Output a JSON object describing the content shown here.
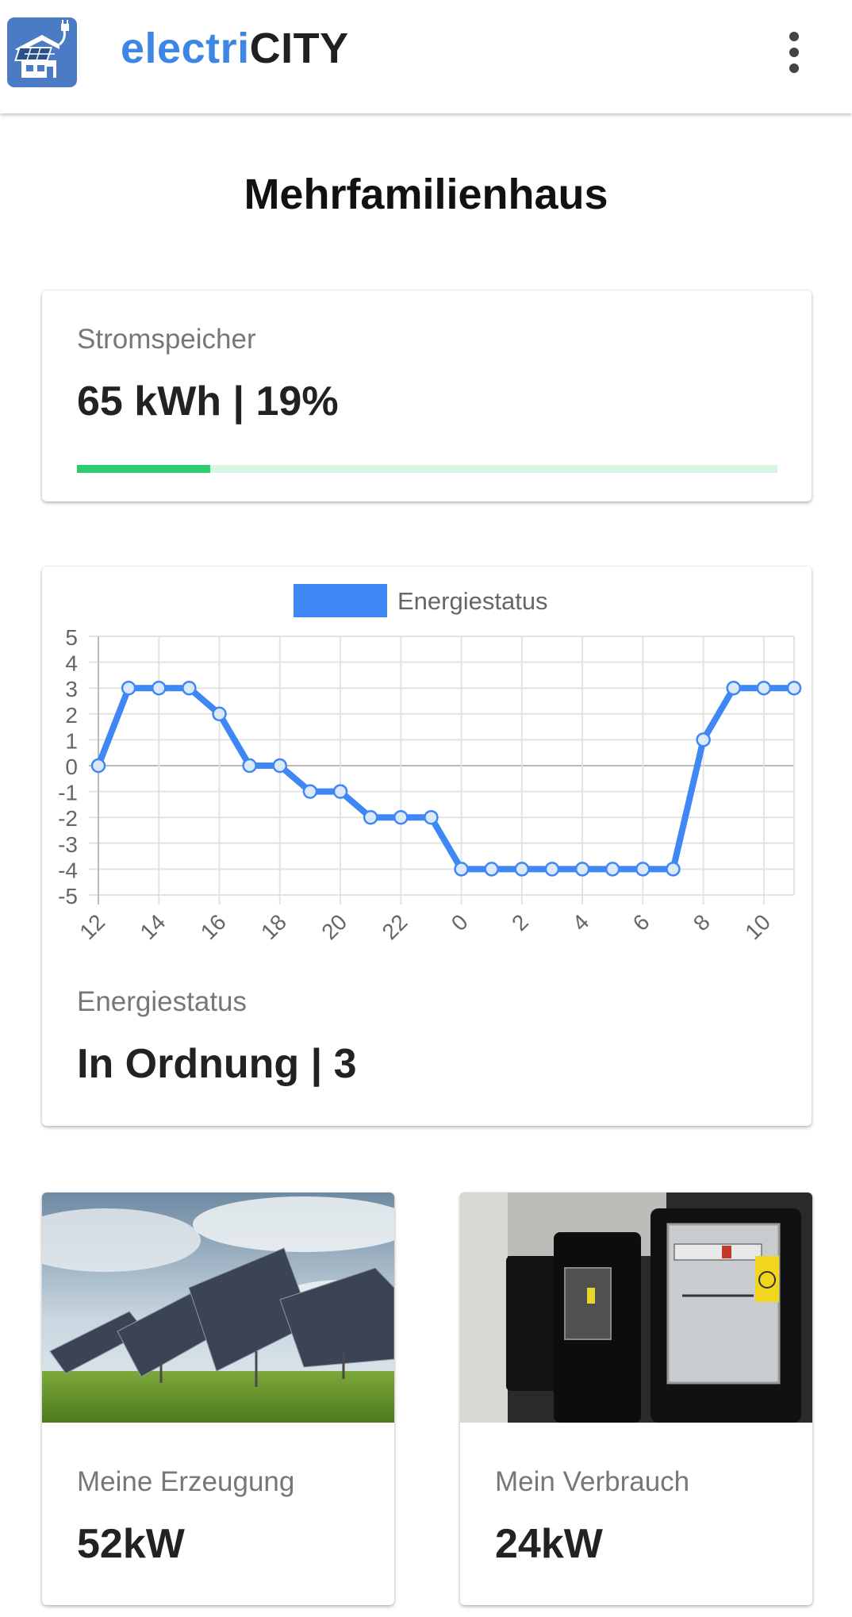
{
  "app": {
    "title_part1": "electri",
    "title_part2": "CITY",
    "logo_icon": "solar-house-plug-icon",
    "menu_icon": "more-vert-icon"
  },
  "page": {
    "title": "Mehrfamilienhaus"
  },
  "storage": {
    "label": "Stromspeicher",
    "value": "65 kWh | 19%",
    "percent": 19
  },
  "energy": {
    "label": "Energiestatus",
    "value": "In Ordnung | 3"
  },
  "generation": {
    "label": "Meine Erzeugung",
    "value": "52kW",
    "image": "solar-panels-photo"
  },
  "consumption": {
    "label": "Mein Verbrauch",
    "value": "24kW",
    "image": "electricity-meters-photo"
  },
  "colors": {
    "accent": "#3d86e6",
    "line": "#3f87f5",
    "progress": "#2ecc71",
    "progress_track": "#d9f5e3"
  },
  "chart_data": {
    "type": "line",
    "series": [
      {
        "name": "Energiestatus",
        "x": [
          "12",
          "13",
          "14",
          "15",
          "16",
          "17",
          "18",
          "19",
          "20",
          "21",
          "22",
          "23",
          "0",
          "1",
          "2",
          "3",
          "4",
          "5",
          "6",
          "7",
          "8",
          "9",
          "10",
          "11"
        ],
        "values": [
          0,
          3,
          3,
          3,
          2,
          0,
          0,
          -1,
          -1,
          -2,
          -2,
          -2,
          -4,
          -4,
          -4,
          -4,
          -4,
          -4,
          -4,
          -4,
          1,
          3,
          3,
          3
        ]
      }
    ],
    "x_tick_labels": [
      "12",
      "14",
      "16",
      "18",
      "20",
      "22",
      "0",
      "2",
      "4",
      "6",
      "8",
      "10"
    ],
    "y_ticks": [
      "5",
      "4",
      "3",
      "2",
      "1",
      "0",
      "-1",
      "-2",
      "-3",
      "-4",
      "-5"
    ],
    "ylim": [
      -5,
      5
    ],
    "grid": true,
    "legend": "top-center"
  }
}
